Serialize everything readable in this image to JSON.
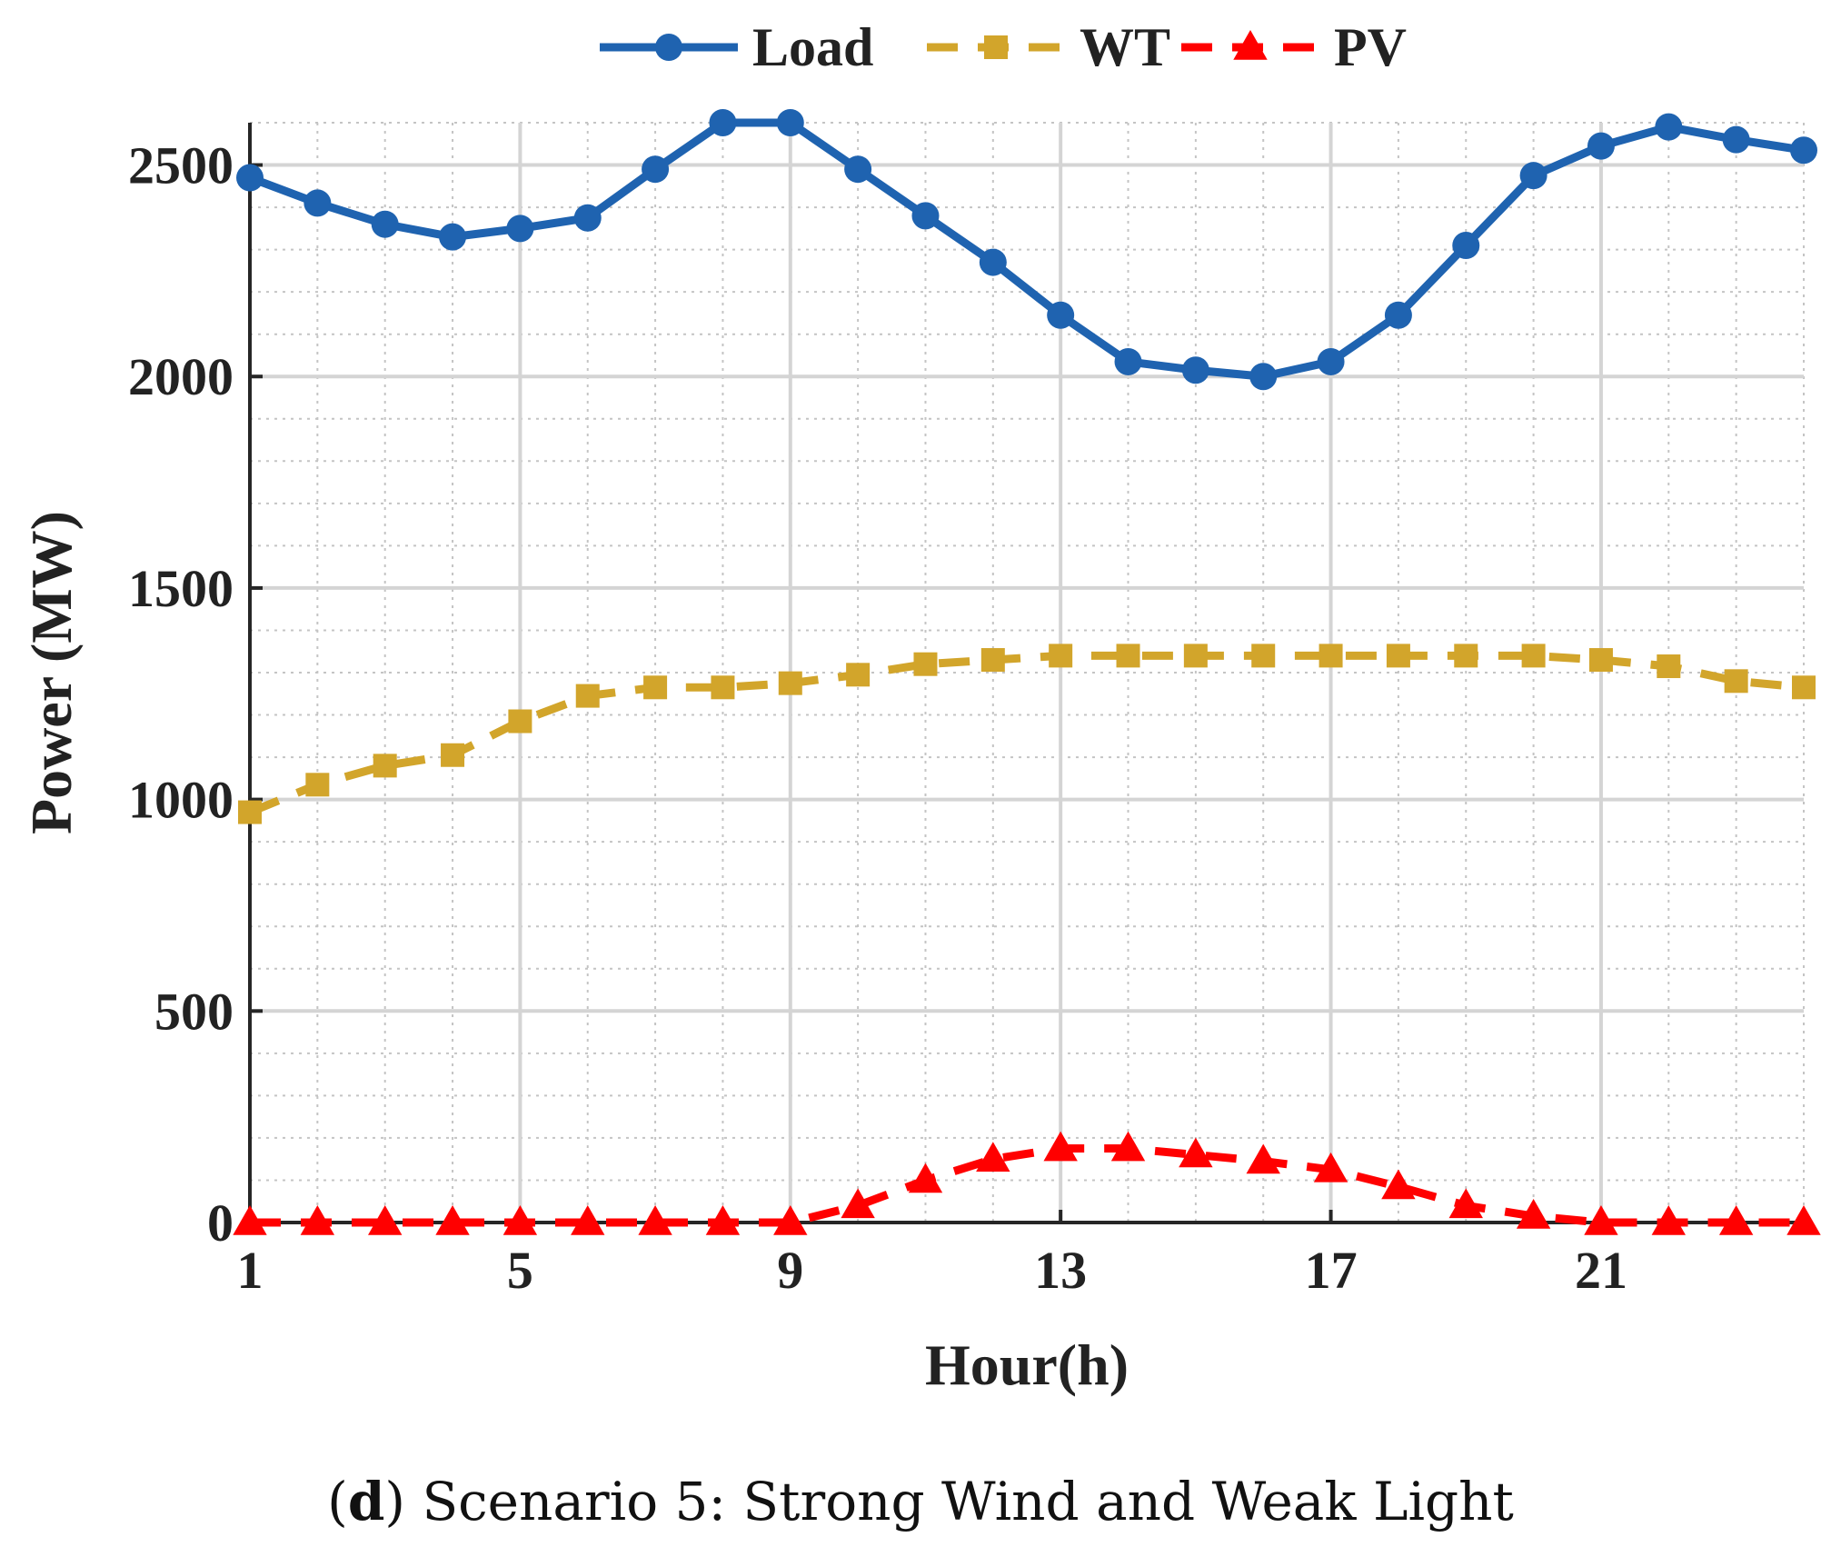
{
  "chart_data": {
    "type": "line",
    "xlabel": "Hour(h)",
    "ylabel": "Power (MW)",
    "xlim": [
      1,
      24
    ],
    "ylim": [
      0,
      2600
    ],
    "x_ticks": [
      1,
      5,
      9,
      13,
      17,
      21
    ],
    "y_ticks": [
      0,
      500,
      1000,
      1500,
      2000,
      2500
    ],
    "grid": true,
    "legend_position": "top-center",
    "x": [
      1,
      2,
      3,
      4,
      5,
      6,
      7,
      8,
      9,
      10,
      11,
      12,
      13,
      14,
      15,
      16,
      17,
      18,
      19,
      20,
      21,
      22,
      23,
      24
    ],
    "series": [
      {
        "name": "Load",
        "color": "#1f63b0",
        "marker": "circle",
        "dash": "solid",
        "values": [
          2470,
          2410,
          2360,
          2330,
          2350,
          2375,
          2490,
          2600,
          2600,
          2490,
          2380,
          2270,
          2145,
          2035,
          2015,
          2000,
          2035,
          2145,
          2310,
          2475,
          2545,
          2590,
          2560,
          2535
        ]
      },
      {
        "name": "WT",
        "color": "#d2a52b",
        "marker": "square",
        "dash": "dashed",
        "values": [
          970,
          1035,
          1080,
          1105,
          1185,
          1245,
          1265,
          1265,
          1275,
          1295,
          1320,
          1330,
          1340,
          1340,
          1340,
          1340,
          1340,
          1340,
          1340,
          1340,
          1330,
          1315,
          1280,
          1265
        ]
      },
      {
        "name": "PV",
        "color": "#ff0000",
        "marker": "triangle",
        "dash": "dashed",
        "values": [
          0,
          0,
          0,
          0,
          0,
          0,
          0,
          0,
          0,
          40,
          100,
          150,
          175,
          175,
          160,
          145,
          125,
          85,
          40,
          15,
          0,
          0,
          0,
          0
        ]
      }
    ]
  },
  "caption": {
    "open_paren": "(",
    "letter": "d",
    "text": ") Scenario 5: Strong Wind and Weak Light"
  }
}
